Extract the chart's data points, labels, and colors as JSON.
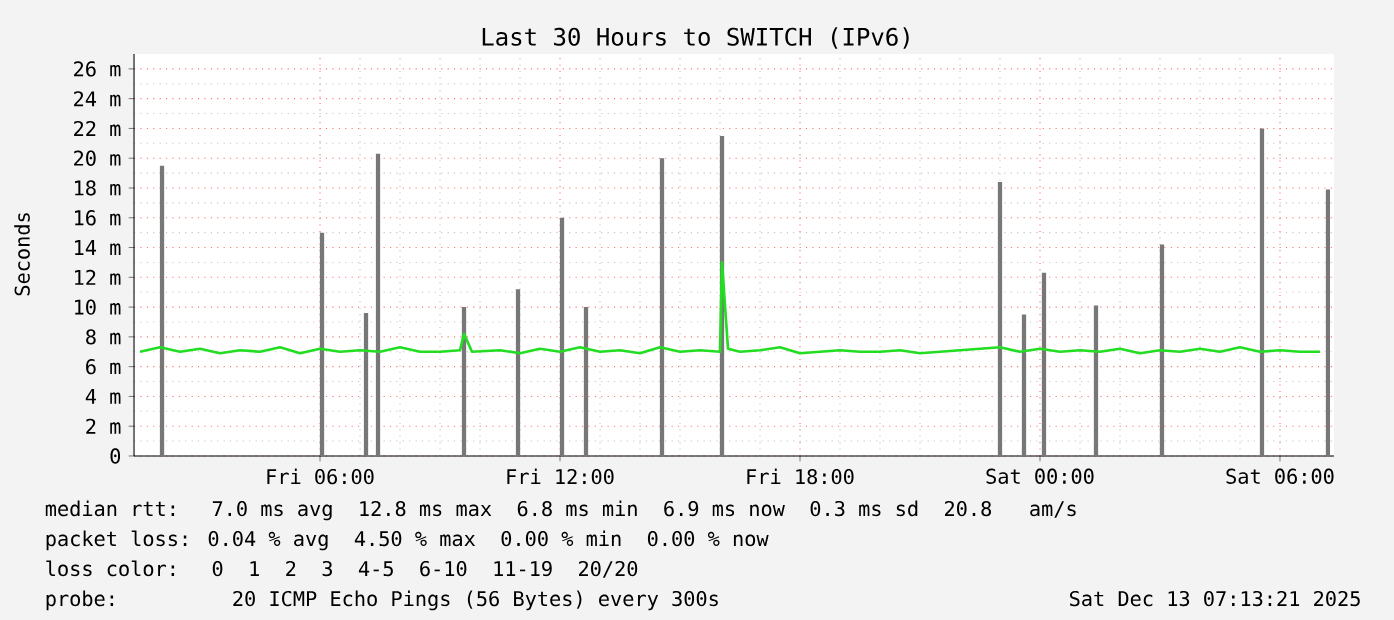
{
  "chart_data": {
    "type": "line",
    "title": "Last 30 Hours to SWITCH (IPv6)",
    "ylabel": "Seconds",
    "xlim": [
      "2025-12-12T01:21",
      "2025-12-13T07:21"
    ],
    "xticks": [
      {
        "value": "2025-12-12T06:00",
        "label": "Fri 06:00"
      },
      {
        "value": "2025-12-12T12:00",
        "label": "Fri 12:00"
      },
      {
        "value": "2025-12-12T18:00",
        "label": "Fri 18:00"
      },
      {
        "value": "2025-12-13T00:00",
        "label": "Sat 00:00"
      },
      {
        "value": "2025-12-13T06:00",
        "label": "Sat 06:00"
      }
    ],
    "ylim": [
      0,
      27
    ],
    "yticks": [
      0,
      {
        "value": 2,
        "label": "2 m"
      },
      {
        "value": 4,
        "label": "4 m"
      },
      {
        "value": 6,
        "label": "6 m"
      },
      {
        "value": 8,
        "label": "8 m"
      },
      {
        "value": 10,
        "label": "10 m"
      },
      {
        "value": 12,
        "label": "12 m"
      },
      {
        "value": 14,
        "label": "14 m"
      },
      {
        "value": 16,
        "label": "16 m"
      },
      {
        "value": 18,
        "label": "18 m"
      },
      {
        "value": 20,
        "label": "20 m"
      },
      {
        "value": 22,
        "label": "22 m"
      },
      {
        "value": 24,
        "label": "24 m"
      },
      {
        "value": 26,
        "label": "26 m"
      }
    ],
    "grid": true,
    "series": [
      {
        "type": "bar",
        "color": "#777777",
        "x": [
          "2025-12-12T02:03",
          "2025-12-12T06:03",
          "2025-12-12T07:09",
          "2025-12-12T07:27",
          "2025-12-12T09:36",
          "2025-12-12T10:57",
          "2025-12-12T12:03",
          "2025-12-12T12:39",
          "2025-12-12T14:33",
          "2025-12-12T16:03",
          "2025-12-12T23:00",
          "2025-12-12T23:36",
          "2025-12-13T00:06",
          "2025-12-13T01:24",
          "2025-12-13T03:03",
          "2025-12-13T05:33",
          "2025-12-13T07:12"
        ],
        "values": [
          19.5,
          15,
          9.6,
          20.3,
          10,
          11.2,
          16,
          10,
          20,
          21.5,
          18.4,
          9.5,
          12.3,
          10.1,
          14.2,
          22,
          17.9
        ]
      },
      {
        "color": "#22dd22",
        "x": [
          "2025-12-12T01:30",
          "2025-12-12T02:00",
          "2025-12-12T02:30",
          "2025-12-12T03:00",
          "2025-12-12T03:30",
          "2025-12-12T04:00",
          "2025-12-12T04:30",
          "2025-12-12T05:00",
          "2025-12-12T05:30",
          "2025-12-12T06:00",
          "2025-12-12T06:30",
          "2025-12-12T07:00",
          "2025-12-12T07:30",
          "2025-12-12T08:00",
          "2025-12-12T08:30",
          "2025-12-12T09:00",
          "2025-12-12T09:30",
          "2025-12-12T09:36",
          "2025-12-12T09:48",
          "2025-12-12T10:30",
          "2025-12-12T11:00",
          "2025-12-12T11:30",
          "2025-12-12T12:00",
          "2025-12-12T12:30",
          "2025-12-12T13:00",
          "2025-12-12T13:30",
          "2025-12-12T14:00",
          "2025-12-12T14:30",
          "2025-12-12T15:00",
          "2025-12-12T15:30",
          "2025-12-12T16:00",
          "2025-12-12T16:03",
          "2025-12-12T16:12",
          "2025-12-12T16:30",
          "2025-12-12T17:00",
          "2025-12-12T17:30",
          "2025-12-12T18:00",
          "2025-12-12T18:30",
          "2025-12-12T19:00",
          "2025-12-12T19:30",
          "2025-12-12T20:00",
          "2025-12-12T20:30",
          "2025-12-12T21:00",
          "2025-12-12T21:30",
          "2025-12-12T22:00",
          "2025-12-12T22:30",
          "2025-12-12T23:00",
          "2025-12-12T23:30",
          "2025-12-13T00:00",
          "2025-12-13T00:30",
          "2025-12-13T01:00",
          "2025-12-13T01:30",
          "2025-12-13T02:00",
          "2025-12-13T02:30",
          "2025-12-13T03:00",
          "2025-12-13T03:30",
          "2025-12-13T04:00",
          "2025-12-13T04:30",
          "2025-12-13T05:00",
          "2025-12-13T05:30",
          "2025-12-13T06:00",
          "2025-12-13T06:30",
          "2025-12-13T07:00"
        ],
        "values": [
          7.0,
          7.3,
          7.0,
          7.2,
          6.9,
          7.1,
          7.0,
          7.3,
          6.9,
          7.2,
          7.0,
          7.1,
          7.0,
          7.3,
          7.0,
          7.0,
          7.1,
          8.2,
          7.0,
          7.1,
          6.9,
          7.2,
          7.0,
          7.3,
          7.0,
          7.1,
          6.9,
          7.3,
          7.0,
          7.1,
          7.0,
          13.0,
          7.2,
          7.0,
          7.1,
          7.3,
          6.9,
          7.0,
          7.1,
          7.0,
          7.0,
          7.1,
          6.9,
          7.0,
          7.1,
          7.2,
          7.3,
          7.0,
          7.2,
          7.0,
          7.1,
          7.0,
          7.2,
          6.9,
          7.1,
          7.0,
          7.2,
          7.0,
          7.3,
          7.0,
          7.1,
          7.0,
          7.0
        ]
      }
    ],
    "annotations": [
      "median rtt:  7.0 ms avg  12.8 ms max  6.8 ms min  6.9 ms now  0.3 ms sd  20.8   am/s",
      "packet loss: 0.04 % avg  4.50 % max  0.00 % min  0.00 % now",
      "loss color:  0  1  2  3  4-5  6-10  11-19  20/20",
      "probe:       20 ICMP Echo Pings (56 Bytes) every 300s",
      "Sat Dec 13 07:13:21 2025"
    ]
  }
}
